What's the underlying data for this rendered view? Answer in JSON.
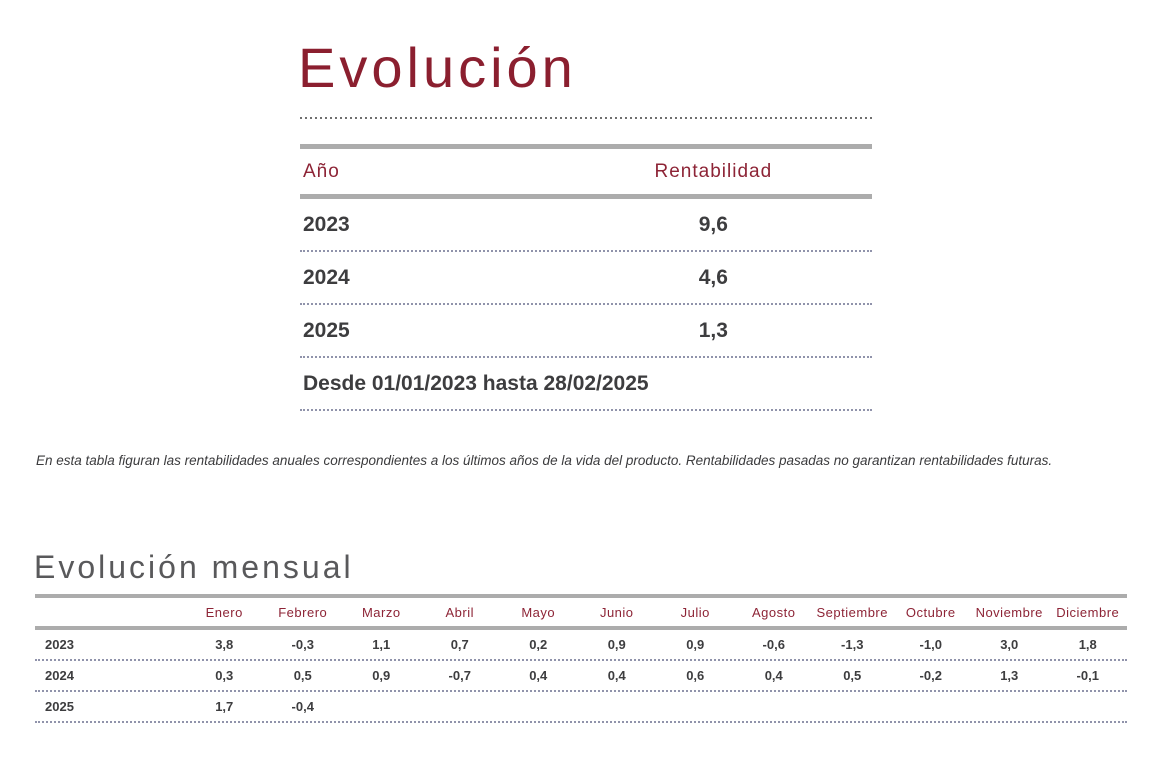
{
  "colors": {
    "accent_maroon": "#8b1f2f",
    "table_header_maroon": "#8d2436",
    "text_dark": "#3d3d3f",
    "bar_gray": "#acacac",
    "heading_gray": "#59595b",
    "dotted_separator": "#9093ab"
  },
  "evolution": {
    "title": "Evolución",
    "annual_table": {
      "headers": {
        "year": "Año",
        "return": "Rentabilidad"
      },
      "rows": [
        {
          "year": "2023",
          "value": "9,6"
        },
        {
          "year": "2024",
          "value": "4,6"
        },
        {
          "year": "2025",
          "value": "1,3"
        }
      ],
      "period_note": "Desde 01/01/2023 hasta 28/02/2025"
    },
    "disclaimer": "En esta tabla figuran las rentabilidades anuales correspondientes a los últimos años de la vida del producto. Rentabilidades pasadas no garantizan rentabilidades futuras."
  },
  "monthly": {
    "title": "Evolución mensual",
    "months": [
      "Enero",
      "Febrero",
      "Marzo",
      "Abril",
      "Mayo",
      "Junio",
      "Julio",
      "Agosto",
      "Septiembre",
      "Octubre",
      "Noviembre",
      "Diciembre"
    ],
    "rows": [
      {
        "year": "2023",
        "values": [
          "3,8",
          "-0,3",
          "1,1",
          "0,7",
          "0,2",
          "0,9",
          "0,9",
          "-0,6",
          "-1,3",
          "-1,0",
          "3,0",
          "1,8"
        ]
      },
      {
        "year": "2024",
        "values": [
          "0,3",
          "0,5",
          "0,9",
          "-0,7",
          "0,4",
          "0,4",
          "0,6",
          "0,4",
          "0,5",
          "-0,2",
          "1,3",
          "-0,1"
        ]
      },
      {
        "year": "2025",
        "values": [
          "1,7",
          "-0,4",
          "",
          "",
          "",
          "",
          "",
          "",
          "",
          "",
          "",
          ""
        ]
      }
    ]
  }
}
